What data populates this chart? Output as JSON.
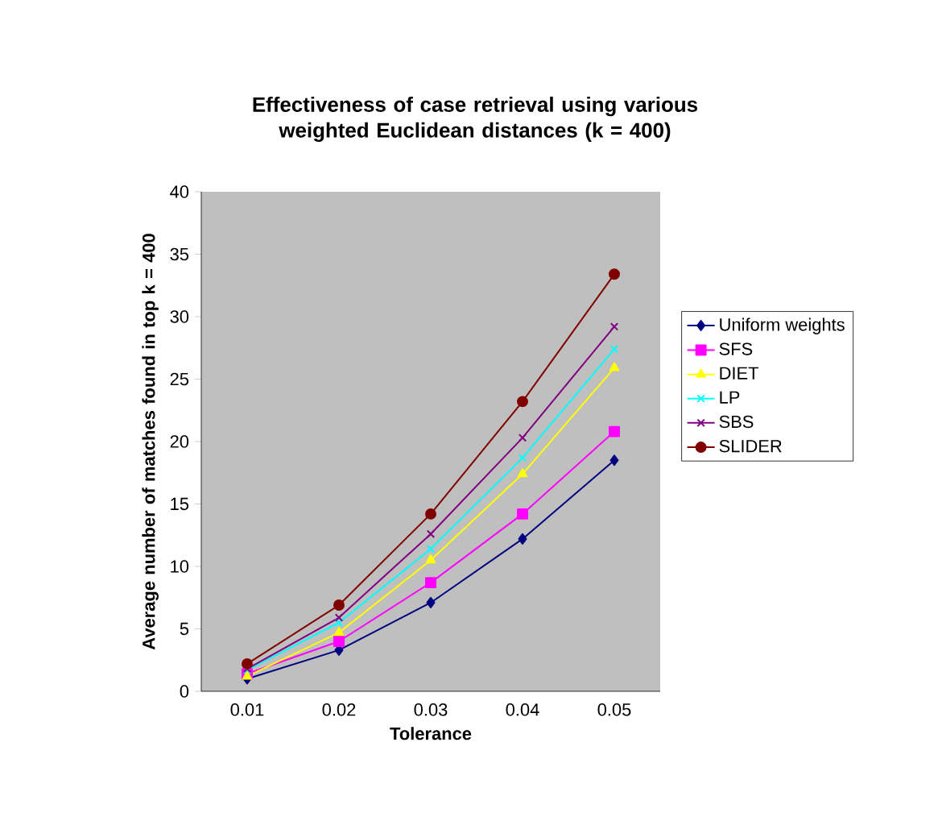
{
  "chart_data": {
    "type": "line",
    "title": "Effectiveness of case retrieval using various weighted Euclidean distances (k = 400)",
    "xlabel": "Tolerance",
    "ylabel": "Average number of matches found in top k = 400",
    "categories": [
      "0.01",
      "0.02",
      "0.03",
      "0.04",
      "0.05"
    ],
    "ylim": [
      0,
      40
    ],
    "yticks": [
      0,
      5,
      10,
      15,
      20,
      25,
      30,
      35,
      40
    ],
    "grid": false,
    "legend": "right",
    "series": [
      {
        "name": "Uniform weights",
        "color": "#000080",
        "marker": "diamond",
        "values": [
          1.0,
          3.3,
          7.1,
          12.2,
          18.5
        ]
      },
      {
        "name": "SFS",
        "color": "#ff00ff",
        "marker": "square",
        "values": [
          1.4,
          4.0,
          8.7,
          14.2,
          20.8
        ]
      },
      {
        "name": "DIET",
        "color": "#ffff00",
        "marker": "triangle",
        "values": [
          1.2,
          4.7,
          10.5,
          17.4,
          25.9
        ]
      },
      {
        "name": "LP",
        "color": "#00ffff",
        "marker": "cross",
        "values": [
          1.7,
          5.5,
          11.4,
          18.7,
          27.4
        ]
      },
      {
        "name": "SBS",
        "color": "#800080",
        "marker": "cross",
        "values": [
          1.8,
          5.9,
          12.6,
          20.3,
          29.2
        ]
      },
      {
        "name": "SLIDER",
        "color": "#800000",
        "marker": "circle",
        "values": [
          2.2,
          6.9,
          14.2,
          23.2,
          33.4
        ]
      }
    ]
  }
}
